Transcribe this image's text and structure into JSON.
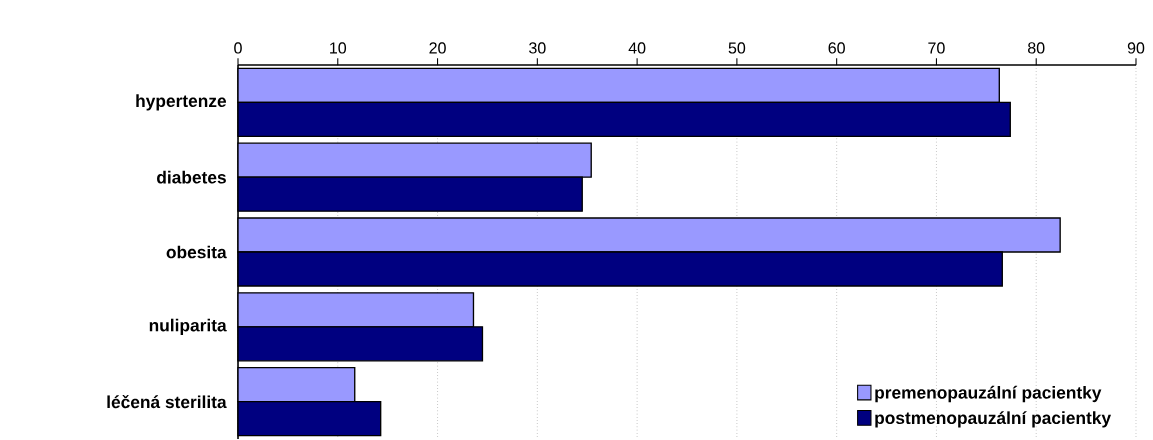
{
  "chart_data": {
    "type": "bar",
    "orientation": "horizontal",
    "categories": [
      "hypertenze",
      "diabetes",
      "obesita",
      "nuliparita",
      "léčená sterilita"
    ],
    "series": [
      {
        "name": "premenopauzální pacientky",
        "color": "#9999ff",
        "values": [
          76.3,
          35.4,
          82.4,
          23.6,
          11.7
        ]
      },
      {
        "name": "postmenopauzální pacientky",
        "color": "#000080",
        "values": [
          77.4,
          34.5,
          76.6,
          24.5,
          14.3
        ]
      }
    ],
    "xlim": [
      0,
      90
    ],
    "xticks": [
      0,
      10,
      20,
      30,
      40,
      50,
      60,
      70,
      80,
      90
    ],
    "grid": "x",
    "legend": "bottom right"
  }
}
